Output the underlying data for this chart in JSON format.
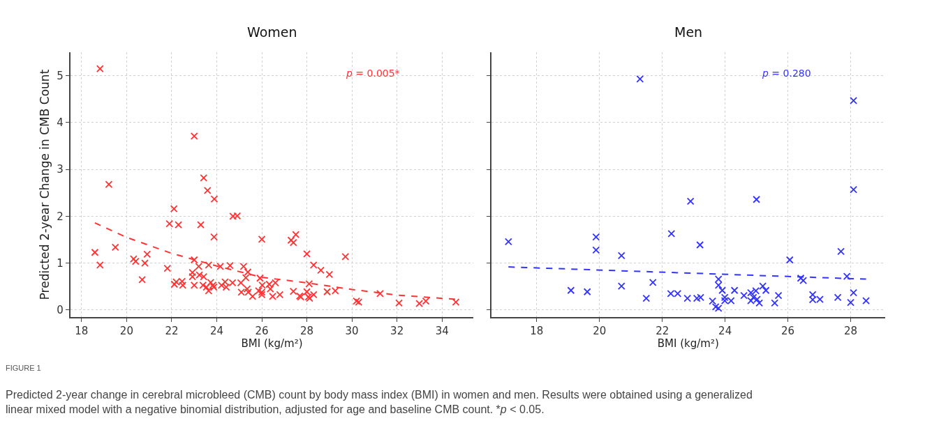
{
  "chart_data": [
    {
      "type": "scatter",
      "title": "Women",
      "xlabel": "BMI (kg/m²)",
      "ylabel": "Predicted 2-year Change in CMB Count",
      "annotations": [
        "p = 0.005*",
        "FIGURE 1",
        "Predicted 2-year change in cerebral microbleed (CMB) count by body mass index (BMI) in women and men. Results were obtained using a generalized linear mixed model with a negative binomial distribution, adjusted for age and baseline CMB count. *p < 0.05."
      ],
      "xlim": [
        17.5,
        35.4
      ],
      "xticks": [
        18,
        20,
        22,
        24,
        26,
        28,
        30,
        32,
        34
      ],
      "ylim": [
        -0.15,
        5.5
      ],
      "yticks": [
        0,
        1,
        2,
        3,
        4,
        5
      ],
      "grid": true,
      "marker": "cross",
      "series": [
        {
          "color": "#ff3333",
          "x": [
            18.82,
            23.0,
            23.42,
            19.21,
            18.59,
            18.82,
            19.5,
            20.31,
            20.4,
            20.81,
            20.91,
            20.69,
            21.81,
            21.9,
            22.1,
            22.3,
            22.12,
            22.2,
            22.46,
            22.49,
            23.0,
            22.92,
            22.92,
            23.0,
            23.2,
            23.23,
            23.29,
            23.42,
            23.39,
            23.54,
            23.59,
            23.64,
            23.64,
            23.73,
            23.83,
            23.89,
            23.88,
            23.87,
            24.16,
            24.21,
            24.37,
            24.42,
            24.59,
            24.7,
            24.72,
            24.91,
            25.07,
            25.19,
            25.09,
            25.29,
            25.38,
            25.35,
            25.4,
            25.59,
            25.86,
            26.0,
            25.92,
            26.02,
            26.0,
            26.0,
            26.33,
            26.38,
            26.48,
            26.6,
            26.8,
            27.3,
            27.4,
            27.51,
            27.4,
            27.68,
            27.73,
            28.0,
            28.0,
            28.1,
            28.07,
            28.12,
            28.3,
            28.3,
            28.62,
            29.0,
            28.9,
            29.26,
            29.71,
            30.2,
            30.3,
            31.25,
            32.09,
            32.99,
            33.28,
            34.61
          ],
          "values": [
            5.15,
            3.71,
            2.82,
            2.68,
            1.23,
            0.96,
            1.34,
            1.09,
            1.04,
            1.0,
            1.19,
            0.65,
            0.89,
            1.84,
            2.16,
            1.82,
            0.55,
            0.6,
            0.61,
            0.53,
            1.07,
            0.8,
            0.71,
            0.53,
            0.93,
            0.75,
            1.82,
            0.71,
            0.53,
            0.49,
            2.55,
            0.96,
            0.41,
            0.59,
            0.53,
            2.37,
            1.56,
            0.49,
            0.93,
            0.53,
            0.6,
            0.49,
            0.95,
            0.58,
            2.0,
            2.01,
            0.58,
            0.93,
            0.38,
            0.69,
            0.81,
            0.45,
            0.38,
            0.29,
            0.41,
            1.51,
            0.68,
            0.53,
            0.38,
            0.33,
            0.55,
            0.45,
            0.29,
            0.58,
            0.33,
            1.49,
            1.44,
            1.61,
            0.4,
            0.3,
            0.28,
            1.2,
            0.39,
            0.56,
            0.28,
            0.25,
            0.33,
            0.96,
            0.85,
            0.76,
            0.39,
            0.41,
            1.14,
            0.19,
            0.17,
            0.35,
            0.15,
            0.14,
            0.19,
            0.17
          ]
        },
        {
          "type": "line",
          "color": "#ff3333",
          "line_style": "dashed",
          "marker": "none",
          "x": [
            18.59,
            20,
            22,
            24,
            26,
            28,
            30,
            32,
            34,
            34.6
          ],
          "values": [
            1.86,
            1.55,
            1.21,
            0.94,
            0.7,
            0.58,
            0.44,
            0.32,
            0.25,
            0.23
          ]
        }
      ]
    },
    {
      "type": "scatter",
      "title": "Men",
      "xlabel": "BMI (kg/m²)",
      "annotations": [
        "p = 0.280"
      ],
      "xlim": [
        16.55,
        29.1
      ],
      "xticks": [
        18,
        20,
        22,
        24,
        26,
        28
      ],
      "ylim": [
        -0.15,
        5.5
      ],
      "yticks": [
        0,
        1,
        2,
        3,
        4,
        5
      ],
      "tick_labels": "x",
      "grid": true,
      "marker": "cross",
      "series": [
        {
          "color": "#3333ff",
          "x": [
            21.29,
            28.09,
            17.1,
            19.09,
            19.61,
            19.89,
            19.89,
            20.7,
            20.7,
            21.49,
            21.7,
            22.29,
            22.27,
            22.49,
            22.8,
            22.9,
            23.1,
            23.2,
            23.22,
            23.6,
            23.7,
            23.79,
            23.79,
            23.79,
            23.91,
            23.99,
            23.99,
            24.19,
            24.3,
            24.6,
            24.82,
            24.82,
            24.9,
            24.98,
            25.0,
            25.02,
            25.09,
            25.2,
            25.3,
            25.58,
            25.7,
            26.06,
            26.41,
            26.49,
            26.79,
            26.79,
            27.02,
            27.59,
            27.69,
            27.88,
            28.0,
            28.09,
            28.09,
            28.49
          ],
          "values": [
            4.93,
            4.47,
            1.46,
            0.42,
            0.39,
            1.56,
            1.28,
            1.16,
            0.51,
            0.25,
            0.59,
            1.63,
            0.35,
            0.35,
            0.25,
            2.32,
            0.25,
            1.39,
            0.27,
            0.19,
            0.07,
            0.66,
            0.53,
            0.04,
            0.42,
            0.27,
            0.2,
            0.2,
            0.42,
            0.31,
            0.37,
            0.2,
            0.27,
            0.41,
            2.36,
            0.23,
            0.15,
            0.51,
            0.42,
            0.15,
            0.31,
            1.07,
            0.68,
            0.63,
            0.33,
            0.22,
            0.23,
            0.27,
            1.25,
            0.72,
            0.16,
            0.37,
            2.57,
            0.2
          ]
        },
        {
          "type": "line",
          "color": "#3333ff",
          "line_style": "dashed",
          "marker": "none",
          "x": [
            17.1,
            28.49
          ],
          "values": [
            0.92,
            0.66
          ]
        }
      ]
    }
  ]
}
